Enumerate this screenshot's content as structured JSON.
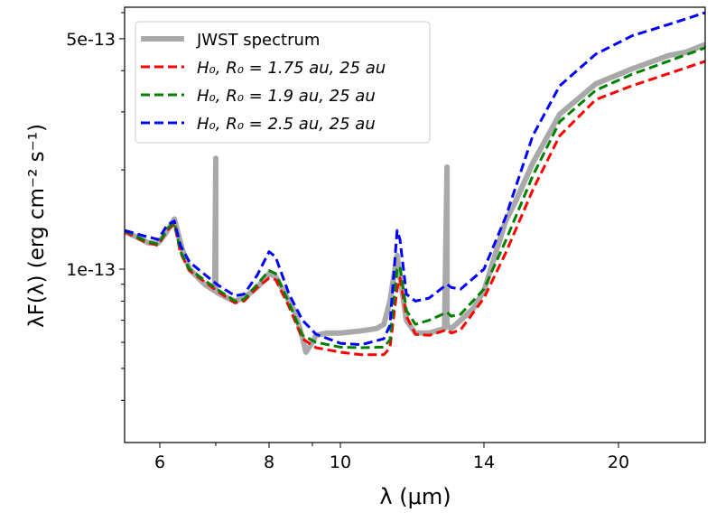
{
  "chart_data": {
    "type": "line",
    "title": "",
    "xlabel": "λ (μm)",
    "ylabel": "λF(λ) (erg cm⁻² s⁻¹)",
    "xlim": [
      5.37,
      23.86
    ],
    "ylim": [
      2.98e-14,
      6.23e-13
    ],
    "yscale": "log",
    "x_ticks": [
      6,
      8,
      10,
      14,
      20
    ],
    "x_tick_labels": [
      "6",
      "8",
      "10",
      "14",
      "20"
    ],
    "x_minor_ticks": [
      7,
      9
    ],
    "y_ticks": [
      1e-13,
      5e-13
    ],
    "y_tick_labels": [
      "1e-13",
      "5e-13"
    ],
    "y_minor_ticks": [
      4e-14,
      5e-14,
      6e-14,
      7e-14,
      8e-14,
      9e-14,
      2e-13,
      3e-13,
      4e-13,
      6e-13
    ],
    "grid": false,
    "legend_position": "top-left",
    "flux_unit": 1e-13,
    "series": [
      {
        "name": "JWST spectrum",
        "color": "#a9a9a9",
        "style": "solid",
        "x": [
          5.37,
          5.6,
          5.8,
          5.97,
          6.1,
          6.26,
          6.4,
          6.53,
          6.8,
          6.98,
          7.0,
          7.0,
          7.02,
          7.2,
          7.36,
          7.53,
          7.78,
          8.0,
          8.15,
          8.46,
          8.6,
          8.77,
          8.85,
          9.0,
          9.13,
          9.5,
          10,
          10.58,
          11.0,
          11.21,
          11.38,
          11.58,
          11.66,
          11.84,
          12.09,
          12.47,
          12.9,
          12.97,
          12.97,
          13.0,
          13.09,
          13.35,
          13.7,
          14,
          14.97,
          15.4,
          16.18,
          17.38,
          18.99,
          20.6,
          22.25,
          23.0,
          23.86
        ],
        "y": [
          1.3,
          1.25,
          1.2,
          1.2,
          1.28,
          1.42,
          1.15,
          1.0,
          0.9,
          0.86,
          2.17,
          0.86,
          0.85,
          0.82,
          0.8,
          0.82,
          0.88,
          0.97,
          0.95,
          0.8,
          0.74,
          0.62,
          0.56,
          0.6,
          0.63,
          0.64,
          0.64,
          0.65,
          0.66,
          0.68,
          0.8,
          1.1,
          0.95,
          0.7,
          0.64,
          0.64,
          0.66,
          2.04,
          0.67,
          0.67,
          0.66,
          0.7,
          0.76,
          0.86,
          1.4,
          1.6,
          2.1,
          2.95,
          3.65,
          4.05,
          4.45,
          4.55,
          4.8
        ]
      },
      {
        "name": "H₀, R₀ = 1.75 au, 25 au",
        "color": "#ff0000",
        "style": "dashed",
        "x": [
          5.37,
          5.73,
          5.97,
          6.13,
          6.26,
          6.37,
          6.53,
          7.02,
          7.36,
          7.53,
          7.78,
          8.0,
          8.15,
          8.46,
          8.77,
          9.13,
          10,
          10.58,
          11.21,
          11.38,
          11.58,
          11.66,
          11.84,
          12.09,
          12.47,
          12.97,
          13.09,
          13.35,
          14,
          14.97,
          16.18,
          17.38,
          18.99,
          20.6,
          23.86
        ],
        "y": [
          1.3,
          1.21,
          1.18,
          1.31,
          1.37,
          1.12,
          0.99,
          0.86,
          0.79,
          0.8,
          0.88,
          0.94,
          0.93,
          0.77,
          0.615,
          0.578,
          0.56,
          0.55,
          0.55,
          0.578,
          0.87,
          0.94,
          0.72,
          0.635,
          0.63,
          0.655,
          0.64,
          0.655,
          0.817,
          1.12,
          1.74,
          2.54,
          3.27,
          3.6,
          4.27
        ]
      },
      {
        "name": "H₀, R₀ = 1.9 au, 25 au",
        "color": "#008000",
        "style": "dashed",
        "x": [
          5.37,
          5.73,
          5.97,
          6.13,
          6.26,
          6.37,
          6.53,
          7.02,
          7.36,
          7.53,
          7.78,
          8.0,
          8.15,
          8.46,
          8.77,
          9.13,
          10,
          10.58,
          11.21,
          11.38,
          11.58,
          11.66,
          11.84,
          12.09,
          12.47,
          12.97,
          13.09,
          13.35,
          14,
          14.97,
          16.18,
          17.38,
          18.99,
          20.6,
          23.86
        ],
        "y": [
          1.31,
          1.22,
          1.19,
          1.32,
          1.39,
          1.13,
          1.0,
          0.87,
          0.8,
          0.81,
          0.9,
          0.99,
          0.97,
          0.79,
          0.63,
          0.6,
          0.58,
          0.578,
          0.58,
          0.61,
          1.0,
          1.02,
          0.75,
          0.68,
          0.7,
          0.74,
          0.72,
          0.73,
          0.87,
          1.22,
          1.92,
          2.8,
          3.49,
          3.9,
          4.69
        ]
      },
      {
        "name": "H₀, R₀ = 2.5 au, 25 au",
        "color": "#0000ff",
        "style": "dashed",
        "x": [
          5.37,
          5.73,
          5.97,
          6.13,
          6.26,
          6.37,
          6.53,
          7.02,
          7.36,
          7.53,
          7.78,
          8.0,
          8.15,
          8.46,
          8.77,
          9.13,
          10,
          10.58,
          11.21,
          11.38,
          11.58,
          11.66,
          11.84,
          12.09,
          12.47,
          12.97,
          13.09,
          13.35,
          14,
          14.97,
          16.18,
          17.38,
          18.99,
          20.6,
          22.25,
          23.86
        ],
        "y": [
          1.31,
          1.26,
          1.23,
          1.36,
          1.4,
          1.18,
          1.05,
          0.9,
          0.83,
          0.84,
          0.96,
          1.13,
          1.09,
          0.84,
          0.7,
          0.635,
          0.596,
          0.59,
          0.615,
          0.676,
          1.31,
          1.23,
          0.84,
          0.8,
          0.817,
          0.9,
          0.88,
          0.87,
          1.0,
          1.44,
          2.54,
          3.6,
          4.49,
          5.1,
          5.53,
          6.0
        ]
      }
    ]
  }
}
